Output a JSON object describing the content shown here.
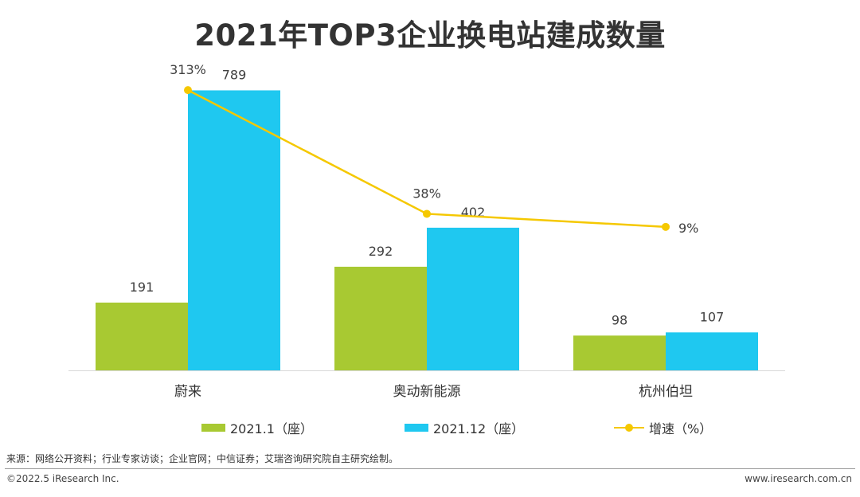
{
  "title": "2021年TOP3企业换电站建成数量",
  "chart_data": {
    "type": "bar",
    "categories": [
      "蔚来",
      "奥动新能源",
      "杭州伯坦"
    ],
    "series": [
      {
        "name": "2021.1（座）",
        "type": "bar",
        "color": "#a8c932",
        "values": [
          191,
          292,
          98
        ],
        "labels": [
          "191",
          "292",
          "98"
        ]
      },
      {
        "name": "2021.12（座）",
        "type": "bar",
        "color": "#1fc8f0",
        "values": [
          789,
          402,
          107
        ],
        "labels": [
          "789",
          "402",
          "107"
        ]
      },
      {
        "name": "增速（%）",
        "type": "line",
        "axis": "secondary",
        "color": "#f5c800",
        "values": [
          313,
          38,
          9
        ],
        "labels": [
          "313%",
          "38%",
          "9%"
        ]
      }
    ],
    "ylim": [
      0,
      900
    ],
    "y2lim": [
      -310,
      400
    ],
    "grid": false,
    "legend": "bottom"
  },
  "legend": {
    "items": [
      {
        "label": "2021.1（座）",
        "color": "#a8c932"
      },
      {
        "label": "2021.12（座）",
        "color": "#1fc8f0"
      },
      {
        "label": "增速（%）",
        "color": "#f5c800"
      }
    ]
  },
  "footer": {
    "source": "来源：网络公开资料；行业专家访谈；企业官网；中信证券；艾瑞咨询研究院自主研究绘制。",
    "copyright": "©2022.5 iResearch Inc.",
    "website": "www.iresearch.com.cn"
  }
}
